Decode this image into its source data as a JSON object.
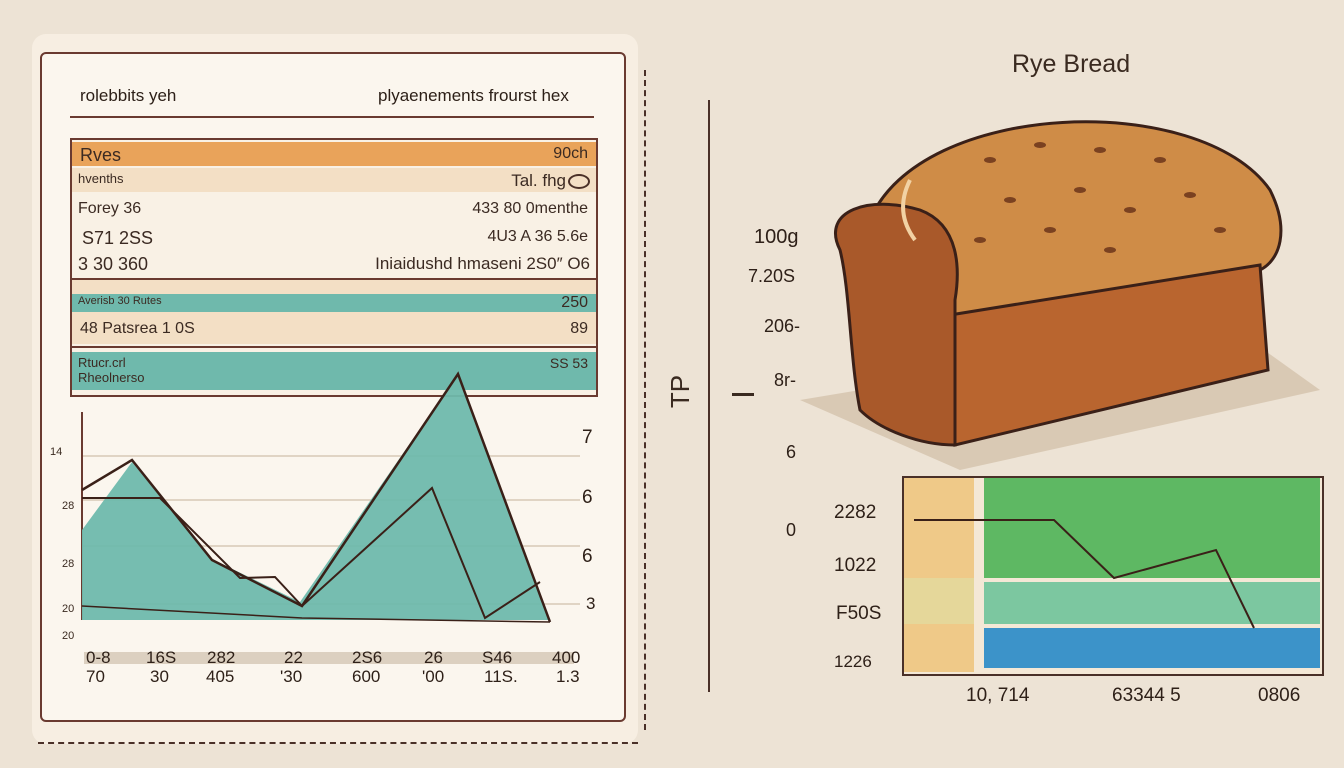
{
  "card": {
    "header_left": "rolebbits yeh",
    "header_right": "plyaenements frourst hex",
    "rows": [
      {
        "left": "Rves",
        "right": "90ch"
      },
      {
        "left": "hvenths",
        "right": "Tal. fhg"
      },
      {
        "left": "Forey  36",
        "right": "433 80 0menthe"
      },
      {
        "left": "S71 2SS",
        "right": "4U3 A 36 5.6e"
      },
      {
        "left": "3 30  360",
        "right": "Iniaidushd hmaseni 2S0″  O6"
      },
      {
        "left": "Averisb  30 Rutes",
        "right": "250"
      },
      {
        "left": "48  Patsrea 1 0S",
        "right": "89"
      },
      {
        "left": "Rtucr.crl\nRheolnerso",
        "right": "SS 53"
      }
    ]
  },
  "chart": {
    "y_left": [
      "14",
      "28",
      "28",
      "20",
      "20"
    ],
    "y_right": [
      "7",
      "6",
      "6",
      "3"
    ],
    "x_top": [
      "0-8",
      "16S",
      "282",
      "22",
      "2S6",
      "26",
      "S46",
      "400"
    ],
    "x_bottom": [
      "70",
      "30",
      "405",
      "'30",
      "600",
      "'00",
      "11S.",
      "1.3"
    ]
  },
  "center_glyph": "TP",
  "product": {
    "title": "Rye Bread",
    "side_labels": [
      "100g",
      "7.20S",
      "206-",
      "8r-",
      "6",
      "0"
    ]
  },
  "mini_chart": {
    "y_labels": [
      "2282",
      "1022",
      "F50S",
      "1226"
    ],
    "x_labels": [
      "10, 714",
      "63344 5",
      "0806"
    ]
  },
  "colors": {
    "teal": "#6fb9ac",
    "orange": "#e9a35a",
    "border": "#6a3a30",
    "green": "#5eb863",
    "blue": "#3c93c9"
  }
}
